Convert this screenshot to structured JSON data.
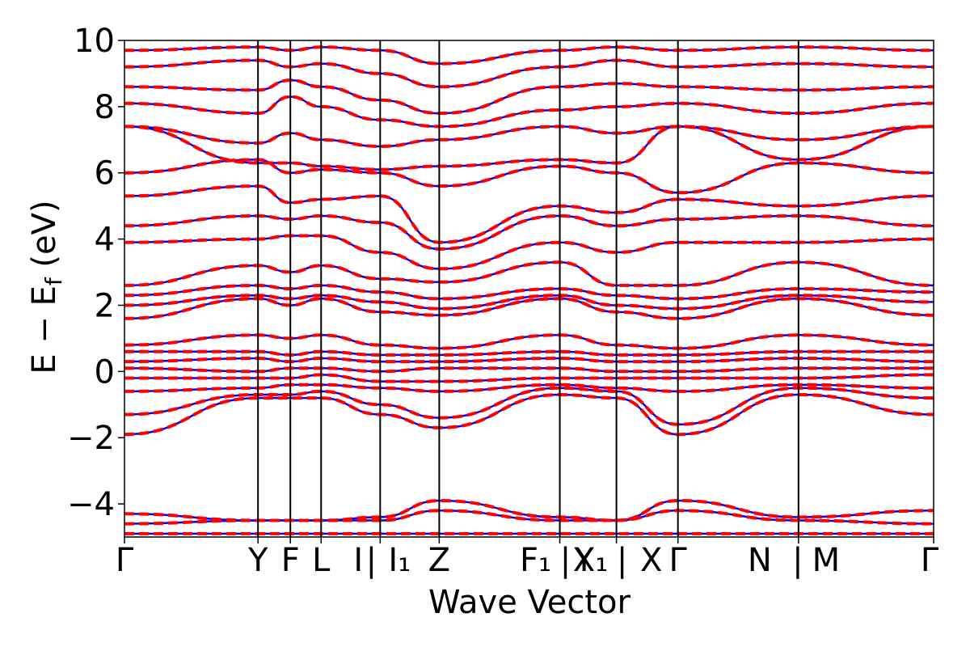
{
  "chart_data": {
    "type": "line",
    "title": "",
    "xlabel": "Wave Vector",
    "ylabel": "E − E_f (eV)",
    "ylabel_parts": {
      "main": "E − E",
      "sub": "f",
      "unit": " (eV)"
    },
    "ylim": [
      -5,
      10
    ],
    "yticks": [
      10,
      8,
      6,
      4,
      2,
      0,
      -2,
      -4
    ],
    "ytick_labels": [
      "10",
      "8",
      "6",
      "4",
      "2",
      "0",
      "−2",
      "−4"
    ],
    "grid": false,
    "legend": "none",
    "x_range": [
      0,
      1
    ],
    "kpath_positions": [
      0,
      0.165,
      0.205,
      0.243,
      0.316,
      0.389,
      0.538,
      0.608,
      0.684,
      0.833,
      1.0
    ],
    "kpath_labels": [
      {
        "x": 0.0,
        "text": "Γ"
      },
      {
        "x": 0.165,
        "text": "Y"
      },
      {
        "x": 0.205,
        "text": "F"
      },
      {
        "x": 0.243,
        "text": "L"
      },
      {
        "x": 0.289,
        "text": "I"
      },
      {
        "x": 0.305,
        "text": "|"
      },
      {
        "x": 0.34,
        "text": "I₁"
      },
      {
        "x": 0.389,
        "text": "Z"
      },
      {
        "x": 0.508,
        "text": "F₁"
      },
      {
        "x": 0.545,
        "text": "|"
      },
      {
        "x": 0.568,
        "text": "Y"
      },
      {
        "x": 0.576,
        "text": "X₁"
      },
      {
        "x": 0.615,
        "text": "|"
      },
      {
        "x": 0.651,
        "text": "X"
      },
      {
        "x": 0.684,
        "text": "Γ"
      },
      {
        "x": 0.785,
        "text": "N"
      },
      {
        "x": 0.832,
        "text": "|"
      },
      {
        "x": 0.867,
        "text": "M"
      },
      {
        "x": 1.0,
        "text": "Γ"
      }
    ],
    "series": [
      {
        "color": "#0000ff",
        "style": "solid",
        "bands_at_kpoints": [
          [
            -4.9,
            -4.9,
            -4.9,
            -4.9,
            -4.9,
            -4.9,
            -4.9,
            -4.9,
            -4.9,
            -4.9,
            -4.9
          ],
          [
            -4.6,
            -4.5,
            -4.5,
            -4.5,
            -4.5,
            -4.2,
            -4.5,
            -4.5,
            -4.2,
            -4.5,
            -4.6
          ],
          [
            -4.3,
            -4.5,
            -4.5,
            -4.5,
            -4.4,
            -3.9,
            -4.4,
            -4.5,
            -3.9,
            -4.4,
            -4.2
          ],
          [
            -1.9,
            -0.8,
            -0.8,
            -0.8,
            -1.3,
            -1.7,
            -0.7,
            -0.8,
            -1.9,
            -0.7,
            -1.3
          ],
          [
            -1.3,
            -0.7,
            -0.7,
            -0.6,
            -1.0,
            -1.4,
            -0.5,
            -0.6,
            -1.6,
            -0.5,
            -0.8
          ],
          [
            -0.6,
            -0.5,
            -0.4,
            -0.4,
            -0.5,
            -0.6,
            -0.4,
            -0.5,
            -0.6,
            -0.4,
            -0.5
          ],
          [
            -0.2,
            -0.2,
            -0.2,
            -0.1,
            -0.3,
            -0.3,
            -0.2,
            -0.2,
            -0.2,
            -0.2,
            -0.1
          ],
          [
            0.1,
            0.0,
            0.1,
            0.1,
            0.0,
            0.1,
            0.1,
            0.0,
            0.0,
            0.1,
            0.1
          ],
          [
            0.3,
            0.4,
            0.3,
            0.4,
            0.3,
            0.3,
            0.4,
            0.3,
            0.3,
            0.4,
            0.3
          ],
          [
            0.6,
            0.6,
            0.5,
            0.6,
            0.5,
            0.5,
            0.6,
            0.5,
            0.5,
            0.6,
            0.6
          ],
          [
            0.8,
            1.1,
            1.0,
            1.1,
            0.8,
            0.7,
            1.1,
            0.8,
            0.7,
            1.1,
            0.8
          ],
          [
            1.6,
            2.2,
            2.0,
            2.2,
            1.8,
            1.7,
            2.2,
            1.8,
            1.6,
            2.2,
            1.7
          ],
          [
            2.0,
            2.3,
            2.2,
            2.3,
            2.1,
            1.9,
            2.3,
            2.0,
            1.9,
            2.3,
            2.1
          ],
          [
            2.3,
            2.6,
            2.5,
            2.6,
            2.4,
            2.2,
            2.5,
            2.3,
            2.2,
            2.5,
            2.4
          ],
          [
            2.6,
            3.2,
            3.0,
            3.2,
            2.8,
            2.7,
            3.3,
            2.6,
            2.6,
            3.3,
            2.6
          ],
          [
            3.9,
            4.0,
            4.1,
            4.1,
            3.6,
            3.1,
            3.9,
            3.6,
            3.9,
            3.9,
            4.0
          ],
          [
            4.4,
            4.7,
            4.6,
            4.7,
            4.5,
            3.7,
            4.7,
            4.4,
            4.6,
            4.7,
            4.4
          ],
          [
            5.3,
            5.6,
            5.1,
            5.2,
            5.3,
            3.9,
            5.0,
            4.8,
            5.2,
            5.0,
            5.3
          ],
          [
            6.0,
            6.4,
            6.0,
            6.1,
            6.0,
            5.6,
            6.2,
            6.0,
            5.4,
            6.3,
            6.0
          ],
          [
            7.4,
            6.3,
            6.3,
            6.2,
            6.1,
            6.2,
            6.4,
            6.3,
            7.4,
            6.4,
            7.4
          ],
          [
            7.4,
            6.9,
            7.2,
            7.0,
            6.8,
            7.0,
            7.4,
            7.2,
            7.4,
            7.0,
            7.4
          ],
          [
            8.1,
            7.8,
            8.3,
            8.0,
            7.6,
            7.4,
            7.9,
            8.0,
            8.1,
            7.8,
            8.1
          ],
          [
            8.6,
            8.5,
            8.8,
            8.6,
            8.2,
            7.8,
            8.6,
            8.7,
            8.6,
            8.5,
            8.6
          ],
          [
            9.2,
            9.4,
            9.2,
            9.3,
            9.0,
            8.6,
            9.2,
            9.4,
            9.2,
            9.3,
            9.2
          ],
          [
            9.7,
            9.8,
            9.7,
            9.8,
            9.7,
            9.3,
            9.7,
            9.8,
            9.7,
            9.8,
            9.7
          ]
        ]
      },
      {
        "color": "#ff0000",
        "style": "dashed",
        "bands_at_kpoints": [
          [
            -4.9,
            -4.9,
            -4.9,
            -4.9,
            -4.9,
            -4.9,
            -4.9,
            -4.9,
            -4.9,
            -4.9,
            -4.9
          ],
          [
            -4.6,
            -4.5,
            -4.5,
            -4.5,
            -4.5,
            -4.2,
            -4.5,
            -4.5,
            -4.2,
            -4.5,
            -4.6
          ],
          [
            -4.3,
            -4.5,
            -4.5,
            -4.5,
            -4.4,
            -3.9,
            -4.4,
            -4.5,
            -3.9,
            -4.4,
            -4.2
          ],
          [
            -1.9,
            -0.8,
            -0.8,
            -0.8,
            -1.3,
            -1.7,
            -0.7,
            -0.8,
            -1.9,
            -0.7,
            -1.3
          ],
          [
            -1.3,
            -0.7,
            -0.7,
            -0.6,
            -1.0,
            -1.4,
            -0.5,
            -0.6,
            -1.6,
            -0.5,
            -0.8
          ],
          [
            -0.6,
            -0.5,
            -0.4,
            -0.4,
            -0.5,
            -0.6,
            -0.4,
            -0.5,
            -0.6,
            -0.4,
            -0.5
          ],
          [
            -0.2,
            -0.2,
            -0.2,
            -0.1,
            -0.3,
            -0.3,
            -0.2,
            -0.2,
            -0.2,
            -0.2,
            -0.1
          ],
          [
            0.1,
            0.0,
            0.1,
            0.1,
            0.0,
            0.1,
            0.1,
            0.0,
            0.0,
            0.1,
            0.1
          ],
          [
            0.3,
            0.4,
            0.3,
            0.4,
            0.3,
            0.3,
            0.4,
            0.3,
            0.3,
            0.4,
            0.3
          ],
          [
            0.6,
            0.6,
            0.5,
            0.6,
            0.5,
            0.5,
            0.6,
            0.5,
            0.5,
            0.6,
            0.6
          ],
          [
            0.8,
            1.1,
            1.0,
            1.1,
            0.8,
            0.7,
            1.1,
            0.8,
            0.7,
            1.1,
            0.8
          ],
          [
            1.6,
            2.2,
            2.0,
            2.2,
            1.8,
            1.7,
            2.2,
            1.8,
            1.6,
            2.2,
            1.7
          ],
          [
            2.0,
            2.3,
            2.2,
            2.3,
            2.1,
            1.9,
            2.3,
            2.0,
            1.9,
            2.3,
            2.1
          ],
          [
            2.3,
            2.6,
            2.5,
            2.6,
            2.4,
            2.2,
            2.5,
            2.3,
            2.2,
            2.5,
            2.4
          ],
          [
            2.6,
            3.2,
            3.0,
            3.2,
            2.8,
            2.7,
            3.3,
            2.6,
            2.6,
            3.3,
            2.6
          ],
          [
            3.9,
            4.0,
            4.1,
            4.1,
            3.6,
            3.1,
            3.9,
            3.6,
            3.9,
            3.9,
            4.0
          ],
          [
            4.4,
            4.7,
            4.6,
            4.7,
            4.5,
            3.7,
            4.7,
            4.4,
            4.6,
            4.7,
            4.4
          ],
          [
            5.3,
            5.6,
            5.1,
            5.2,
            5.3,
            3.9,
            5.0,
            4.8,
            5.2,
            5.0,
            5.3
          ],
          [
            6.0,
            6.4,
            6.0,
            6.1,
            6.0,
            5.6,
            6.2,
            6.0,
            5.4,
            6.3,
            6.0
          ],
          [
            7.4,
            6.3,
            6.3,
            6.2,
            6.1,
            6.2,
            6.4,
            6.3,
            7.4,
            6.4,
            7.4
          ],
          [
            7.4,
            6.9,
            7.2,
            7.0,
            6.8,
            7.0,
            7.4,
            7.2,
            7.4,
            7.0,
            7.4
          ],
          [
            8.1,
            7.8,
            8.3,
            8.0,
            7.6,
            7.4,
            7.9,
            8.0,
            8.1,
            7.8,
            8.1
          ],
          [
            8.6,
            8.5,
            8.8,
            8.6,
            8.2,
            7.8,
            8.6,
            8.7,
            8.6,
            8.5,
            8.6
          ],
          [
            9.2,
            9.4,
            9.2,
            9.3,
            9.0,
            8.6,
            9.2,
            9.4,
            9.2,
            9.3,
            9.2
          ],
          [
            9.7,
            9.8,
            9.7,
            9.8,
            9.7,
            9.3,
            9.7,
            9.8,
            9.7,
            9.8,
            9.7
          ]
        ]
      }
    ]
  }
}
